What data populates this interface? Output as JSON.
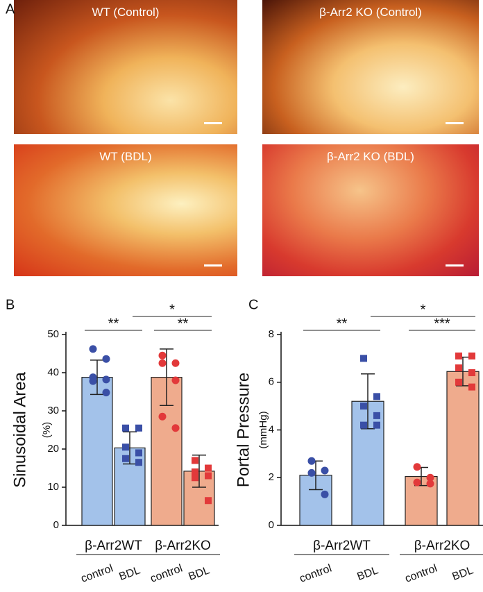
{
  "panel_labels": [
    "A",
    "B",
    "C"
  ],
  "images": [
    {
      "caption": "WT (Control)"
    },
    {
      "caption": "β-Arr2 KO (Control)"
    },
    {
      "caption": "WT (BDL)"
    },
    {
      "caption": "β-Arr2 KO (BDL)"
    }
  ],
  "chart_data": [
    {
      "type": "bar",
      "ylabel": "Sinusoidal Area",
      "yunit": "(%)",
      "categories": [
        "control",
        "BDL",
        "control",
        "BDL"
      ],
      "groups": [
        "β-Arr2WT",
        "β-Arr2KO"
      ],
      "values": [
        38.8,
        20.3,
        38.8,
        14.2
      ],
      "errors": [
        4.5,
        4.2,
        7.4,
        4.2
      ],
      "points": [
        [
          46.2,
          43.6,
          38.8,
          38.2,
          37.8,
          34.8
        ],
        [
          25.5,
          25.5,
          20.5,
          19,
          17.5,
          16.5
        ],
        [
          44.5,
          42.5,
          42.5,
          38,
          28.5,
          25.5
        ],
        [
          17,
          15,
          14,
          13,
          12.5,
          6.5
        ]
      ],
      "colors": [
        "#a3c2ea",
        "#a3c2ea",
        "#efab8d",
        "#efab8d"
      ],
      "point_colors": [
        "#3a4fa6",
        "#3a4fa6",
        "#e2393a",
        "#e2393a"
      ],
      "markers": [
        "circle",
        "square",
        "circle",
        "square"
      ],
      "significance": [
        {
          "label": "**",
          "from": 0,
          "to": 1
        },
        {
          "label": "*",
          "from": 1,
          "to": 3
        },
        {
          "label": "**",
          "from": 2,
          "to": 3
        }
      ],
      "ylim": [
        0,
        50
      ],
      "yticks": [
        0,
        10,
        20,
        30,
        40,
        50
      ]
    },
    {
      "type": "bar",
      "ylabel": "Portal Pressure",
      "yunit": "(mmHg)",
      "categories": [
        "control",
        "BDL",
        "control",
        "BDL"
      ],
      "groups": [
        "β-Arr2WT",
        "β-Arr2KO"
      ],
      "values": [
        2.1,
        5.2,
        2.05,
        6.45
      ],
      "errors": [
        0.6,
        1.15,
        0.38,
        0.6
      ],
      "points": [
        [
          2.7,
          2.3,
          2.2,
          1.3
        ],
        [
          7.0,
          5.4,
          5.0,
          4.6,
          4.2,
          4.2
        ],
        [
          2.45,
          2.0,
          1.8,
          1.75
        ],
        [
          7.1,
          7.1,
          6.6,
          6.4,
          6.0,
          5.8
        ]
      ],
      "colors": [
        "#a3c2ea",
        "#a3c2ea",
        "#efab8d",
        "#efab8d"
      ],
      "point_colors": [
        "#3a4fa6",
        "#3a4fa6",
        "#e2393a",
        "#e2393a"
      ],
      "markers": [
        "circle",
        "square",
        "circle",
        "square"
      ],
      "significance": [
        {
          "label": "**",
          "from": 0,
          "to": 1
        },
        {
          "label": "*",
          "from": 1,
          "to": 3
        },
        {
          "label": "***",
          "from": 2,
          "to": 3
        }
      ],
      "ylim": [
        0,
        8
      ],
      "yticks": [
        0,
        2,
        4,
        6,
        8
      ]
    }
  ]
}
